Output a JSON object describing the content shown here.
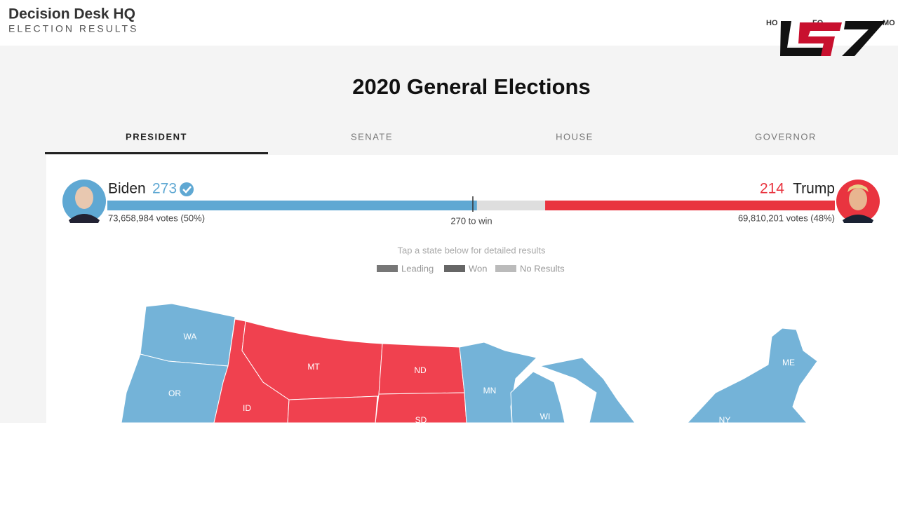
{
  "header": {
    "logo_title": "Decision Desk HQ",
    "logo_subtitle": "ELECTION RESULTS",
    "nav": [
      "HO",
      "FO",
      "MO"
    ]
  },
  "title": "2020 General Elections",
  "tabs": [
    "PRESIDENT",
    "SENATE",
    "HOUSE",
    "GOVERNOR"
  ],
  "candidates": [
    {
      "name": "Biden",
      "electoral": 273,
      "votes": "73,658,984 votes (50%)",
      "color": "#5fa8d3"
    },
    {
      "name": "Trump",
      "electoral": 214,
      "votes": "69,810,201 votes (48%)",
      "color": "#e9343f"
    }
  ],
  "threshold": {
    "value": 270,
    "label": "270 to win"
  },
  "hint": "Tap a state below for detailed results",
  "legend": [
    "Leading",
    "Won",
    "No Results"
  ],
  "states": [
    "WA",
    "OR",
    "ID",
    "MT",
    "ND",
    "SD",
    "MN",
    "WI",
    "ME",
    "NY"
  ]
}
